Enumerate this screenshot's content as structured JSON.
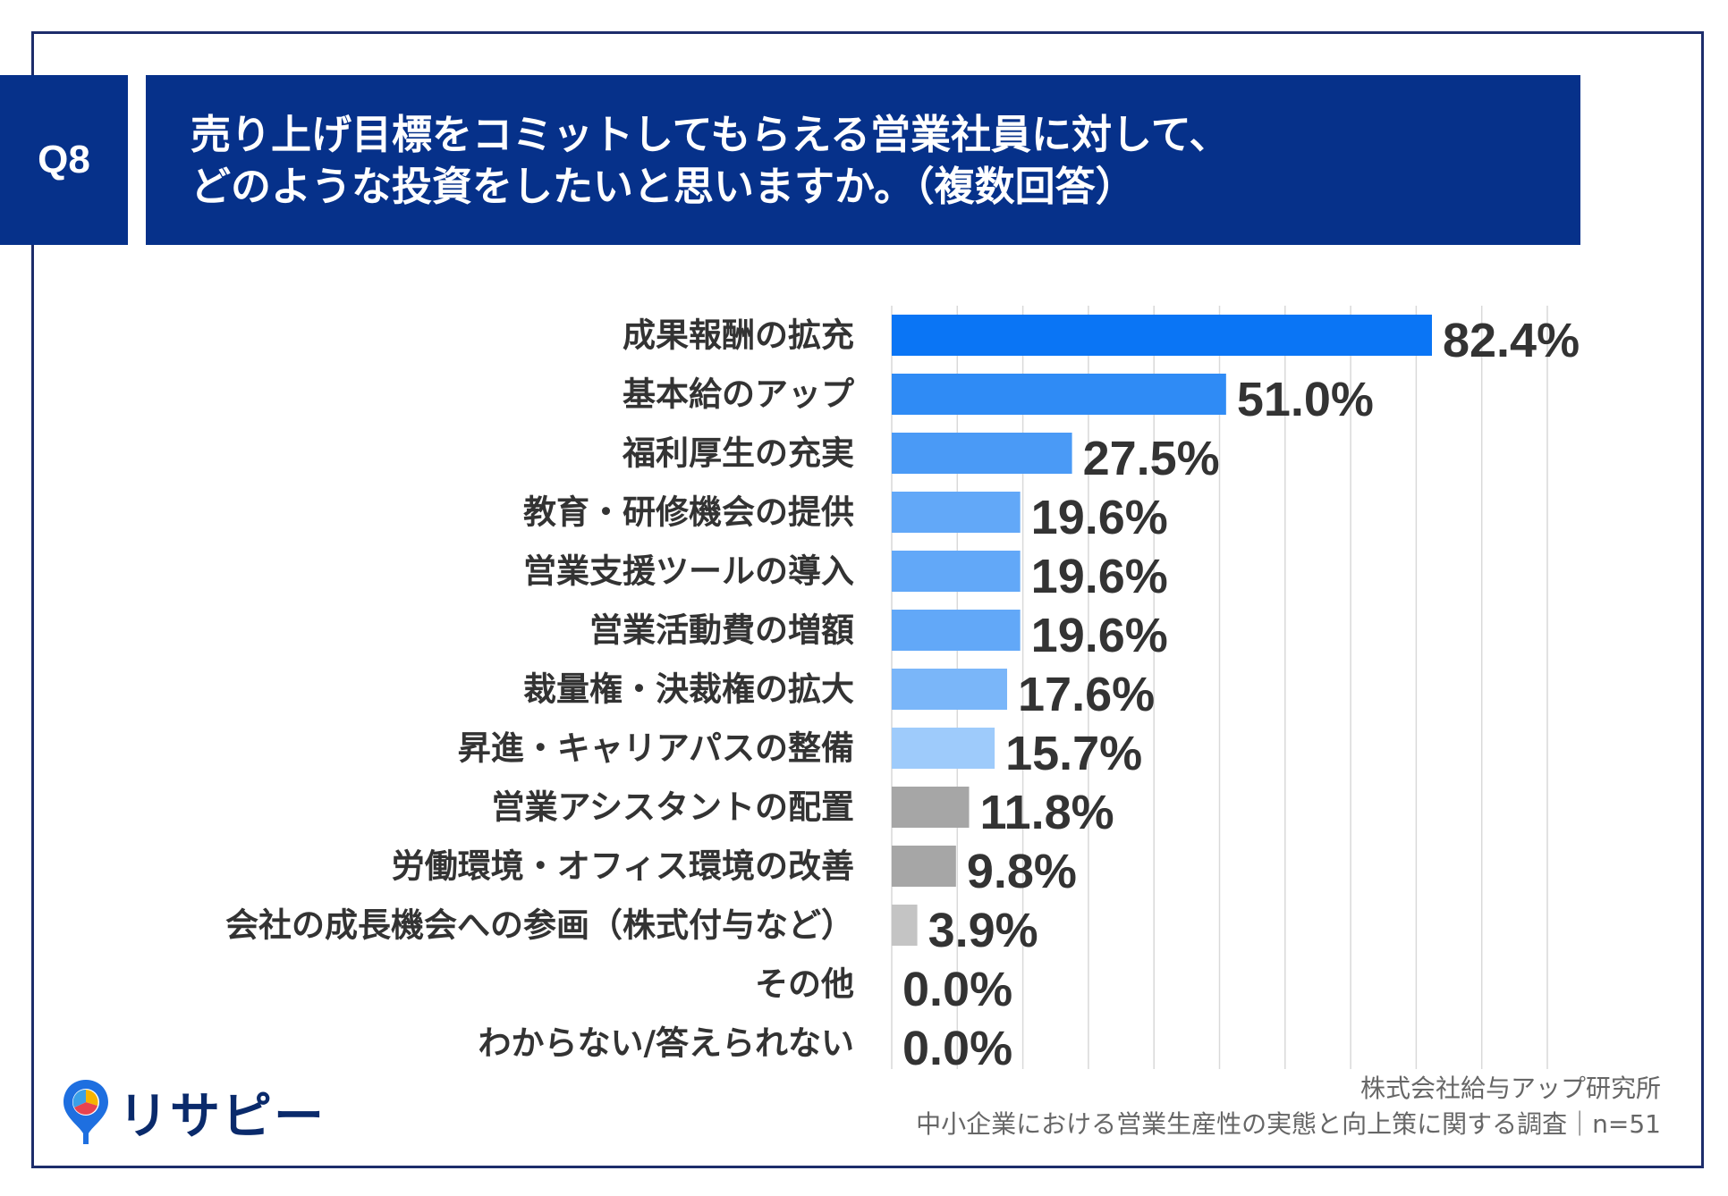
{
  "question": {
    "badge": "Q8",
    "title_line1": "売り上げ目標をコミットしてもらえる営業社員に対して、",
    "title_line2": "どのような投資をしたいと思いますか。（複数回答）"
  },
  "chart_data": {
    "type": "bar",
    "orientation": "horizontal",
    "categories": [
      "成果報酬の拡充",
      "基本給のアップ",
      "福利厚生の充実",
      "教育・研修機会の提供",
      "営業支援ツールの導入",
      "営業活動費の増額",
      "裁量権・決裁権の拡大",
      "昇進・キャリアパスの整備",
      "営業アシスタントの配置",
      "労働環境・オフィス環境の改善",
      "会社の成長機会への参画（株式付与など）",
      "その他",
      "わからない/答えられない"
    ],
    "values": [
      82.4,
      51.0,
      27.5,
      19.6,
      19.6,
      19.6,
      17.6,
      15.7,
      11.8,
      9.8,
      3.9,
      0.0,
      0.0
    ],
    "value_labels": [
      "82.4%",
      "51.0%",
      "27.5%",
      "19.6%",
      "19.6%",
      "19.6%",
      "17.6%",
      "15.7%",
      "11.8%",
      "9.8%",
      "3.9%",
      "0.0%",
      "0.0%"
    ],
    "colors": [
      "#0a75f5",
      "#2f8bf5",
      "#4a9af6",
      "#62a8f8",
      "#62a8f8",
      "#62a8f8",
      "#7ab6f9",
      "#9ecbfb",
      "#a6a6a6",
      "#a6a6a6",
      "#c4c4c4",
      "#c4c4c4",
      "#c4c4c4"
    ],
    "xlim": [
      0,
      100
    ],
    "grid": true,
    "title": "",
    "xlabel": "",
    "ylabel": ""
  },
  "logo": {
    "text": "リサピー"
  },
  "source": {
    "line1": "株式会社給与アップ研究所",
    "line2": "中小企業における営業生産性の実態と向上策に関する調査｜n=51"
  }
}
